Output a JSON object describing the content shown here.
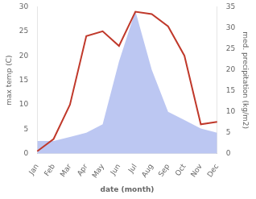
{
  "chart_data": {
    "type": "line",
    "xlabel": "date (month)",
    "ylabel": "max temp (C)",
    "y2label": "med. precipitation (kg/m2)",
    "categories": [
      "Jan",
      "Feb",
      "Mar",
      "Apr",
      "May",
      "Jun",
      "Jul",
      "Aug",
      "Sep",
      "Oct",
      "Nov",
      "Dec"
    ],
    "series": [
      {
        "type": "line",
        "color": "#c0392b",
        "values": [
          0.5,
          3.0,
          10.0,
          24.0,
          25.0,
          22.0,
          29.0,
          28.5,
          26.0,
          20.0,
          6.0,
          6.5
        ]
      },
      {
        "type": "area",
        "color": "#b0bdf0",
        "axis": "y2",
        "values": [
          3.0,
          3.0,
          4.0,
          5.0,
          7.0,
          22.0,
          34.0,
          20.0,
          10.0,
          8.0,
          6.0,
          5.0
        ]
      }
    ],
    "ylim": [
      0,
      30
    ],
    "yticks": [
      0,
      5,
      10,
      15,
      20,
      25,
      30
    ],
    "y2lim": [
      0,
      35
    ],
    "y2ticks": [
      0,
      5,
      10,
      15,
      20,
      25,
      30,
      35
    ],
    "grid": false
  }
}
